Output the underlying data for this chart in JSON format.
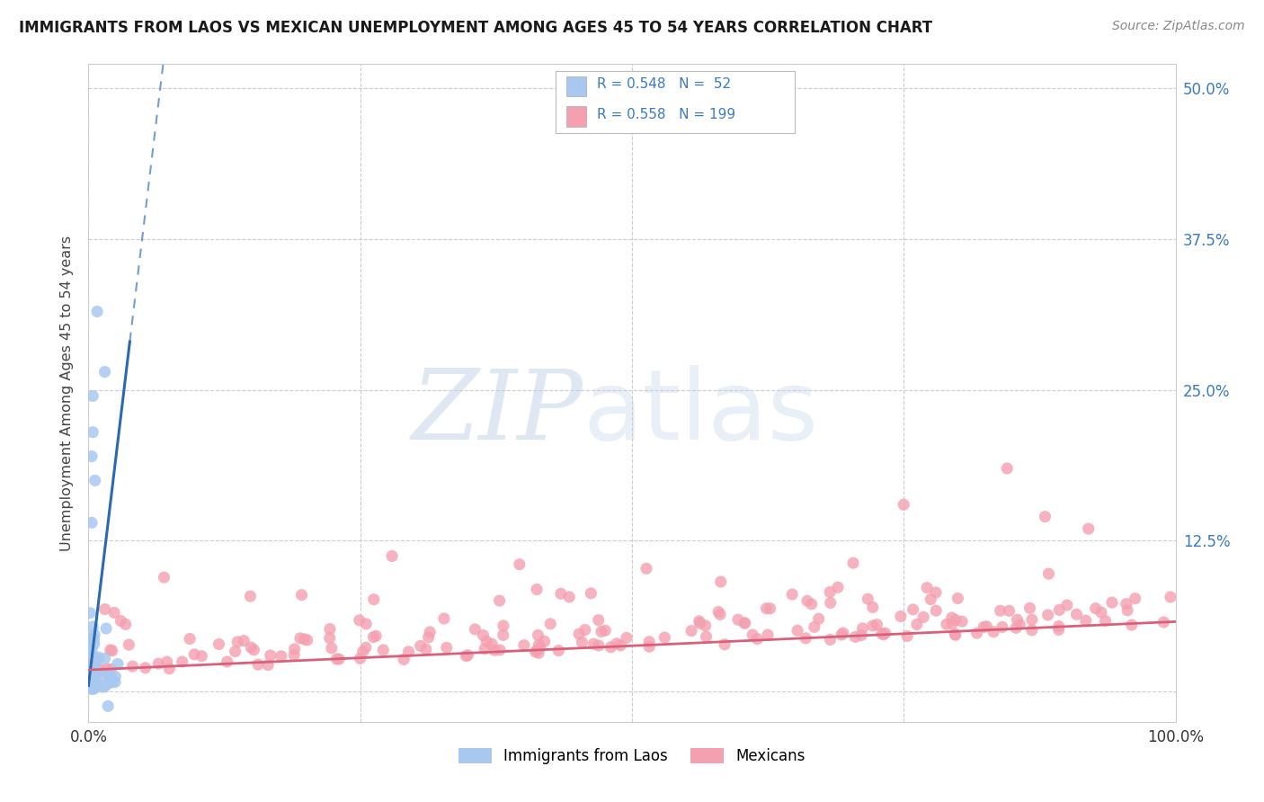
{
  "title": "IMMIGRANTS FROM LAOS VS MEXICAN UNEMPLOYMENT AMONG AGES 45 TO 54 YEARS CORRELATION CHART",
  "source": "Source: ZipAtlas.com",
  "ylabel": "Unemployment Among Ages 45 to 54 years",
  "xlim": [
    0.0,
    1.0
  ],
  "ylim": [
    -0.025,
    0.52
  ],
  "yticks": [
    0.0,
    0.125,
    0.25,
    0.375,
    0.5
  ],
  "yticklabels_right": [
    "",
    "12.5%",
    "25.0%",
    "37.5%",
    "50.0%"
  ],
  "xticks": [
    0.0,
    0.25,
    0.5,
    0.75,
    1.0
  ],
  "xticklabels": [
    "0.0%",
    "",
    "",
    "",
    "100.0%"
  ],
  "legend_labels": [
    "Immigrants from Laos",
    "Mexicans"
  ],
  "R_laos": 0.548,
  "N_laos": 52,
  "R_mexicans": 0.558,
  "N_mexicans": 199,
  "laos_color": "#a8c8f0",
  "mexican_color": "#f4a0b0",
  "laos_line_color": "#2a6ab0",
  "mexican_line_color": "#d9607a",
  "background_color": "#ffffff",
  "grid_color": "#cccccc",
  "tick_color": "#3a7abf",
  "title_color": "#1a1a1a",
  "source_color": "#888888",
  "ylabel_color": "#444444"
}
